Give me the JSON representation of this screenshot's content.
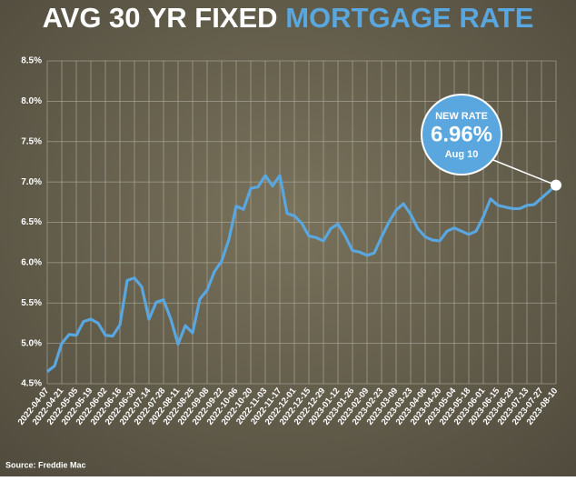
{
  "chart_data": {
    "type": "line",
    "title": "AVG 30 YR FIXED",
    "title_highlight": "MORTGAGE RATE",
    "source": "Source: Freddie Mac",
    "annotation": [
      "NEW RATE",
      "6.96%",
      "Aug 10"
    ],
    "categories": [
      "2022-04-07",
      null,
      "2022-04-21",
      null,
      "2022-05-05",
      null,
      "2022-05-19",
      null,
      "2022-06-02",
      null,
      "2022-06-16",
      null,
      "2022-06-30",
      null,
      "2022-07-14",
      null,
      "2022-07-28",
      null,
      "2022-08-11",
      null,
      "2022-08-25",
      null,
      "2022-09-08",
      null,
      "2022-09-22",
      null,
      "2022-10-06",
      null,
      "2022-10-20",
      null,
      "2022-11-03",
      null,
      "2022-11-17",
      null,
      "2022-12-01",
      null,
      "2022-12-15",
      null,
      "2022-12-29",
      null,
      "2023-01-12",
      null,
      "2023-01-26",
      null,
      "2023-02-09",
      null,
      "2023-02-23",
      null,
      "2023-03-09",
      null,
      "2023-03-23",
      null,
      "2023-04-06",
      null,
      "2023-04-20",
      null,
      "2023-05-04",
      null,
      "2023-05-18",
      null,
      "2023-06-01",
      null,
      "2023-06-15",
      null,
      "2023-06-29",
      null,
      "2023-07-13",
      null,
      "2023-07-27",
      null,
      "2023-08-10"
    ],
    "series": [
      {
        "name": "30 yr fixed",
        "color": "#5aa6de",
        "values": [
          4.65,
          4.72,
          5.0,
          5.11,
          5.1,
          5.27,
          5.3,
          5.25,
          5.1,
          5.09,
          5.23,
          5.78,
          5.81,
          5.7,
          5.3,
          5.51,
          5.54,
          5.3,
          4.99,
          5.22,
          5.13,
          5.55,
          5.66,
          5.89,
          6.02,
          6.29,
          6.7,
          6.66,
          6.92,
          6.94,
          7.08,
          6.95,
          7.08,
          6.61,
          6.58,
          6.49,
          6.33,
          6.31,
          6.27,
          6.42,
          6.48,
          6.33,
          6.15,
          6.13,
          6.09,
          6.12,
          6.32,
          6.5,
          6.65,
          6.73,
          6.6,
          6.42,
          6.32,
          6.28,
          6.27,
          6.39,
          6.43,
          6.39,
          6.35,
          6.39,
          6.57,
          6.79,
          6.71,
          6.69,
          6.67,
          6.67,
          6.71,
          6.72,
          6.8,
          6.88,
          6.96
        ]
      }
    ],
    "ylim": [
      4.5,
      8.5
    ],
    "yticks": [
      {
        "value": 4.5,
        "label": "4.5%"
      },
      {
        "value": 5.0,
        "label": "5.0%"
      },
      {
        "value": 5.5,
        "label": "5.5%"
      },
      {
        "value": 6.0,
        "label": "6.0%"
      },
      {
        "value": 6.5,
        "label": "6.5%"
      },
      {
        "value": 7.0,
        "label": "7.0%"
      },
      {
        "value": 7.5,
        "label": "7.5%"
      },
      {
        "value": 8.0,
        "label": "8.0%"
      },
      {
        "value": 8.5,
        "label": "8.5%"
      }
    ],
    "grid": true
  }
}
